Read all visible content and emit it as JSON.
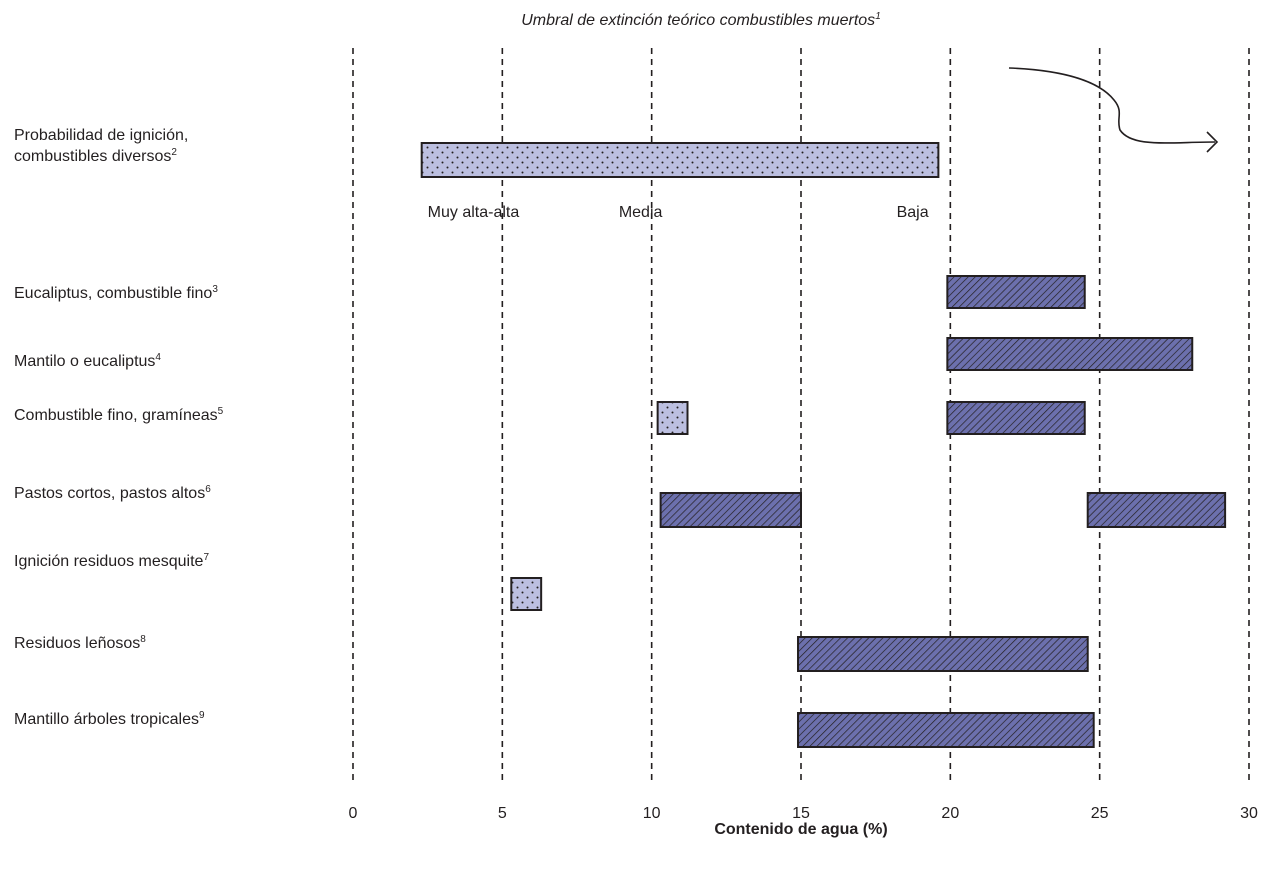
{
  "chart_data": {
    "type": "bar",
    "orientation": "horizontal-range",
    "title": "Umbral de extinción teórico combustibles muertos",
    "title_footnote": "1",
    "xlabel": "Contenido de agua (%)",
    "xlim": [
      0,
      30
    ],
    "xticks": [
      "0",
      "5",
      "10",
      "15",
      "20",
      "25",
      "30"
    ],
    "grid": "vertical dashed at each tick",
    "rows": [
      {
        "label": "Probabilidad de ignición,",
        "label2": "combustibles diversos",
        "footnote": "2"
      },
      {
        "label": "Eucaliptus, combustible fino",
        "footnote": "3"
      },
      {
        "label": "Mantilo o eucaliptus",
        "footnote": "4"
      },
      {
        "label": "Combustible fino, gramíneas",
        "footnote": "5"
      },
      {
        "label": "Pastos cortos, pastos altos",
        "footnote": "6"
      },
      {
        "label": "Ignición residuos mesquite",
        "footnote": "7"
      },
      {
        "label": "Residuos leñosos",
        "footnote": "8"
      },
      {
        "label": "Mantillo árboles tropicales",
        "footnote": "9"
      }
    ],
    "ranges": [
      {
        "row": 0,
        "start": 2.3,
        "end": 19.6,
        "style": "dotted"
      },
      {
        "row": 1,
        "start": 19.9,
        "end": 24.5,
        "style": "hatched"
      },
      {
        "row": 2,
        "start": 19.9,
        "end": 28.1,
        "style": "hatched"
      },
      {
        "row": 3,
        "start": 10.2,
        "end": 11.2,
        "style": "dotted"
      },
      {
        "row": 3,
        "start": 19.9,
        "end": 24.5,
        "style": "hatched"
      },
      {
        "row": 4,
        "start": 10.3,
        "end": 15.0,
        "style": "hatched"
      },
      {
        "row": 4,
        "start": 24.6,
        "end": 29.2,
        "style": "hatched"
      },
      {
        "row": 5,
        "start": 5.3,
        "end": 6.3,
        "style": "dotted"
      },
      {
        "row": 6,
        "start": 14.9,
        "end": 24.6,
        "style": "hatched"
      },
      {
        "row": 7,
        "start": 14.9,
        "end": 24.8,
        "style": "hatched"
      }
    ],
    "ignition_bands": [
      {
        "label": "Muy alta-alta",
        "x": 2.5
      },
      {
        "label": "Media",
        "x": 8.9
      },
      {
        "label": "Baja",
        "x": 18.2
      }
    ],
    "colors": {
      "dotted_fill": "#bcbfe0",
      "hatched_fill": "#6c70ad",
      "outline": "#231f20"
    }
  }
}
